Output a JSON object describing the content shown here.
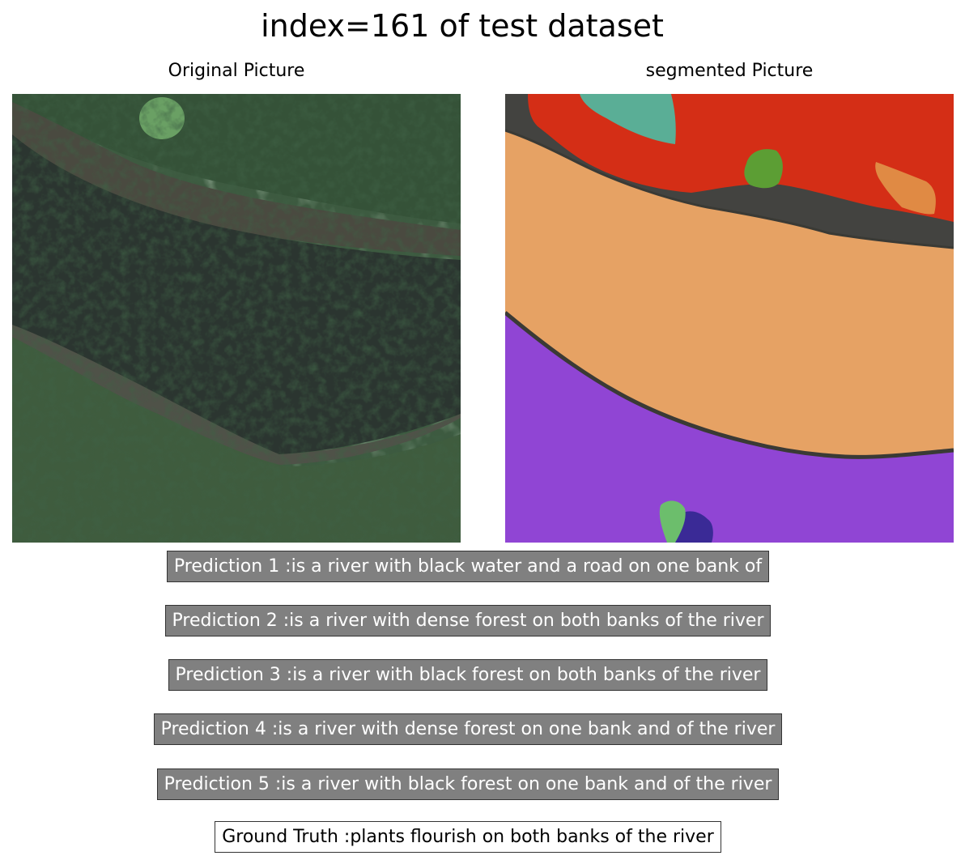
{
  "figure": {
    "title": "index=161 of test dataset",
    "left_panel_title": "Original Picture",
    "right_panel_title": "segmented Picture"
  },
  "predictions": [
    "Prediction 1 :is a river with black water and a road on one bank of",
    "Prediction 2 :is a river with dense forest on both banks of the river",
    "Prediction 3 :is a river with black forest on both banks of the river",
    "Prediction 4 :is a river with dense forest on one bank and of the river",
    "Prediction 5 :is a river with black forest on one bank and of the river"
  ],
  "ground_truth": "Ground Truth :plants flourish on both banks of the river",
  "colors": {
    "caption_box": "#808080",
    "seg_red": "#d42e16",
    "seg_teal": "#5aae96",
    "seg_green": "#5c9e34",
    "seg_orange": "#e08a44",
    "seg_tan": "#e6a264",
    "seg_dark": "#434340",
    "seg_purple": "#9045d4",
    "seg_light_green": "#6cbe6c",
    "seg_navy": "#3a2a96"
  }
}
